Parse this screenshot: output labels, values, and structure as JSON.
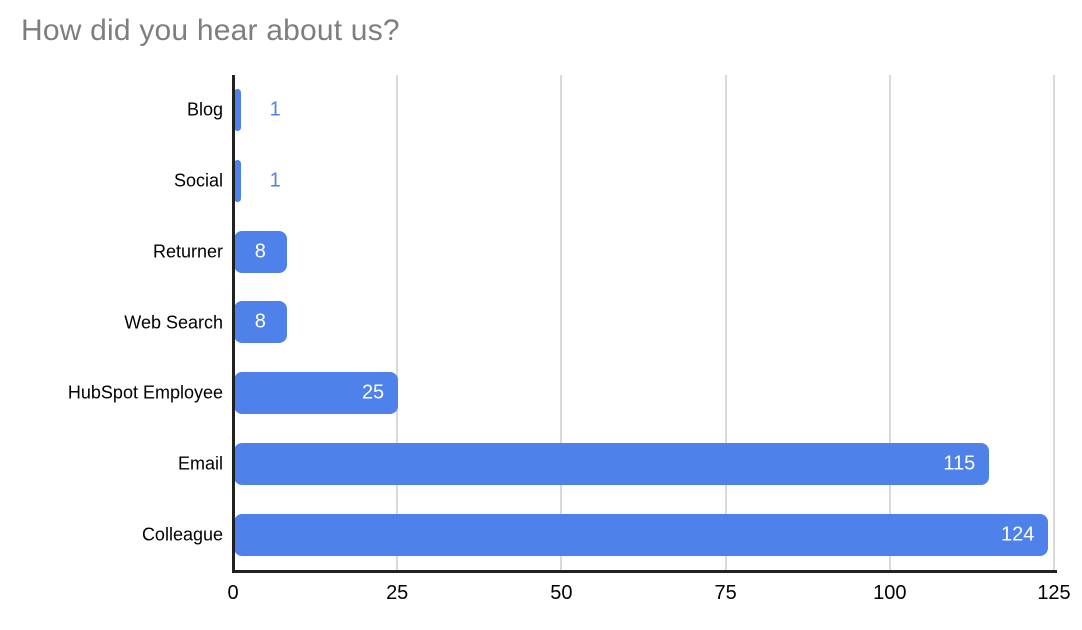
{
  "title": "How did you hear about us?",
  "chart_data": {
    "type": "bar",
    "orientation": "horizontal",
    "title": "How did you hear about us?",
    "categories": [
      "Blog",
      "Social",
      "Returner",
      "Web Search",
      "HubSpot Employee",
      "Email",
      "Colleague"
    ],
    "values": [
      1,
      1,
      8,
      8,
      25,
      115,
      124
    ],
    "xlabel": "",
    "ylabel": "",
    "xlim": [
      0,
      125
    ],
    "x_ticks": [
      0,
      25,
      50,
      75,
      100,
      125
    ],
    "grid": "vertical",
    "legend": "none",
    "data_labels": "shown",
    "colors": {
      "bar": "#4e81e9",
      "value_label_inside": "#ffffff",
      "value_label_outside": "#4e81e9",
      "title": "#7e7e7e",
      "gridline": "#d9d9d9",
      "axis_line": "#212121",
      "tick_label": "#000000",
      "category_label": "#000000",
      "background": "#ffffff"
    }
  }
}
